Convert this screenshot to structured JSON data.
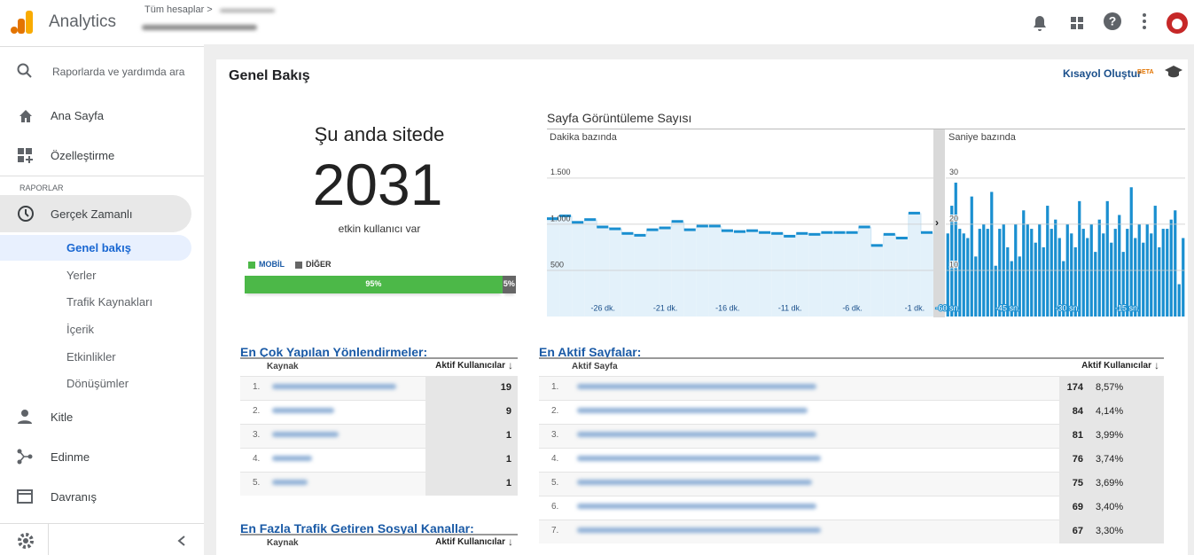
{
  "header": {
    "app_name": "Analytics",
    "breadcrumb": "Tüm hesaplar >"
  },
  "sidebar": {
    "search_placeholder": "Raporlarda ve yardımda ara",
    "items": [
      "Ana Sayfa",
      "Özelleştirme"
    ],
    "section": "RAPORLAR",
    "realtime": "Gerçek Zamanlı",
    "realtime_items": [
      "Genel bakış",
      "Yerler",
      "Trafik Kaynakları",
      "İçerik",
      "Etkinlikler",
      "Dönüşümler"
    ],
    "more_items": [
      "Kitle",
      "Edinme",
      "Davranış"
    ]
  },
  "page": {
    "title": "Genel Bakış",
    "shortcut": "Kısayol Oluştur",
    "beta": "BETA"
  },
  "active_users": {
    "heading": "Şu anda sitede",
    "count": 2031,
    "caption": "etkin kullanıcı var",
    "segments": [
      {
        "name": "MOBİL",
        "color": "#4cb848",
        "value": 95,
        "value_label": "95%"
      },
      {
        "name": "DİĞER",
        "color": "#666666",
        "value": 5,
        "value_label": "5%"
      }
    ]
  },
  "pageviews": {
    "title": "Sayfa Görüntüleme Sayısı",
    "per_minute": {
      "type": "step",
      "title": "Dakika bazında",
      "color": "#1a8fd0",
      "x": [
        -30,
        -29,
        -28,
        -27,
        -26,
        -25,
        -24,
        -23,
        -22,
        -21,
        -20,
        -19,
        -18,
        -17,
        -16,
        -15,
        -14,
        -13,
        -12,
        -11,
        -10,
        -9,
        -8,
        -7,
        -6,
        -5,
        -4,
        -3,
        -2,
        -1,
        0
      ],
      "values": [
        1060,
        1090,
        1020,
        1050,
        970,
        950,
        900,
        880,
        940,
        960,
        1030,
        940,
        980,
        980,
        930,
        920,
        930,
        910,
        900,
        870,
        900,
        890,
        910,
        910,
        910,
        970,
        770,
        890,
        850,
        1120,
        910
      ],
      "xlim": [
        -30.5,
        0.5
      ],
      "xticks": [
        {
          "value": -26,
          "label": "-26 dk."
        },
        {
          "value": -21,
          "label": "-21 dk."
        },
        {
          "value": -16,
          "label": "-16 dk."
        },
        {
          "value": -11,
          "label": "-11 dk."
        },
        {
          "value": -6,
          "label": "-6 dk."
        },
        {
          "value": -1,
          "label": "-1 dk."
        }
      ],
      "ylim": [
        0,
        1700
      ],
      "yticks": [
        500,
        {
          "value": 1000,
          "label": "1.000"
        },
        {
          "value": 1500,
          "label": "1.500"
        }
      ],
      "grid": true
    },
    "per_second": {
      "type": "bar",
      "title": "Saniye bazında",
      "color": "#1a8fd0",
      "x": [
        -60,
        -59,
        -58,
        -57,
        -56,
        -55,
        -54,
        -53,
        -52,
        -51,
        -50,
        -49,
        -48,
        -47,
        -46,
        -45,
        -44,
        -43,
        -42,
        -41,
        -40,
        -39,
        -38,
        -37,
        -36,
        -35,
        -34,
        -33,
        -32,
        -31,
        -30,
        -29,
        -28,
        -27,
        -26,
        -25,
        -24,
        -23,
        -22,
        -21,
        -20,
        -19,
        -18,
        -17,
        -16,
        -15,
        -14,
        -13,
        -12,
        -11,
        -10,
        -9,
        -8,
        -7,
        -6,
        -5,
        -4,
        -3,
        -2,
        -1
      ],
      "values": [
        18,
        24,
        29,
        19,
        18,
        17,
        26,
        13,
        19,
        20,
        19,
        27,
        11,
        19,
        20,
        15,
        12,
        20,
        13,
        23,
        20,
        19,
        16,
        20,
        15,
        24,
        19,
        21,
        17,
        12,
        20,
        18,
        15,
        25,
        19,
        17,
        20,
        14,
        21,
        18,
        25,
        16,
        19,
        22,
        14,
        19,
        28,
        17,
        20,
        16,
        20,
        18,
        24,
        15,
        19,
        19,
        21,
        23,
        7,
        17
      ],
      "xlim": [
        -60.5,
        -0.5
      ],
      "xticks": [
        {
          "value": -60,
          "label": "-60 sn."
        },
        {
          "value": -45,
          "label": "-45 sn."
        },
        {
          "value": -30,
          "label": "-30 sn."
        },
        {
          "value": -15,
          "label": "-15 sn."
        }
      ],
      "ylim": [
        0,
        34
      ],
      "yticks": [
        10,
        20,
        30
      ],
      "grid": true
    }
  },
  "referrals": {
    "title": "En Çok Yapılan Yönlendirmeler:",
    "columns": [
      "Kaynak",
      "Aktif Kullanıcılar"
    ],
    "rows": [
      {
        "rank": "1.",
        "users": 19
      },
      {
        "rank": "2.",
        "users": 9
      },
      {
        "rank": "3.",
        "users": 1
      },
      {
        "rank": "4.",
        "users": 1
      },
      {
        "rank": "5.",
        "users": 1
      }
    ]
  },
  "social": {
    "title": "En Fazla Trafik Getiren Sosyal Kanallar:",
    "columns": [
      "Kaynak",
      "Aktif Kullanıcılar"
    ]
  },
  "pages": {
    "title": "En Aktif Sayfalar:",
    "columns": [
      "Aktif Sayfa",
      "Aktif Kullanıcılar"
    ],
    "rows": [
      {
        "rank": "1.",
        "users": 174,
        "share": "8,57%"
      },
      {
        "rank": "2.",
        "users": 84,
        "share": "4,14%"
      },
      {
        "rank": "3.",
        "users": 81,
        "share": "3,99%"
      },
      {
        "rank": "4.",
        "users": 76,
        "share": "3,74%"
      },
      {
        "rank": "5.",
        "users": 75,
        "share": "3,69%"
      },
      {
        "rank": "6.",
        "users": 69,
        "share": "3,40%"
      },
      {
        "rank": "7.",
        "users": 67,
        "share": "3,30%"
      }
    ]
  }
}
